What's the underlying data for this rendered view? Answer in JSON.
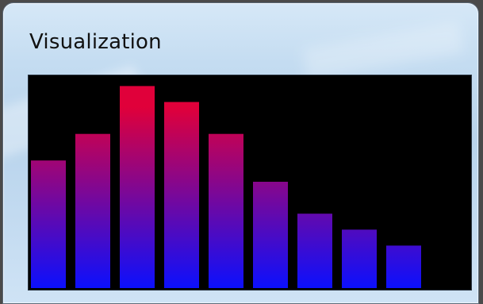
{
  "window": {
    "title": "Visualization"
  },
  "chart_data": {
    "type": "bar",
    "values": [
      12,
      14.5,
      19,
      17.5,
      14.5,
      10,
      7,
      5.5,
      4
    ],
    "ylim": [
      0,
      20
    ],
    "colors": {
      "top": "#e0003a",
      "bottom": "#0a10ff",
      "background": "#000000"
    }
  }
}
